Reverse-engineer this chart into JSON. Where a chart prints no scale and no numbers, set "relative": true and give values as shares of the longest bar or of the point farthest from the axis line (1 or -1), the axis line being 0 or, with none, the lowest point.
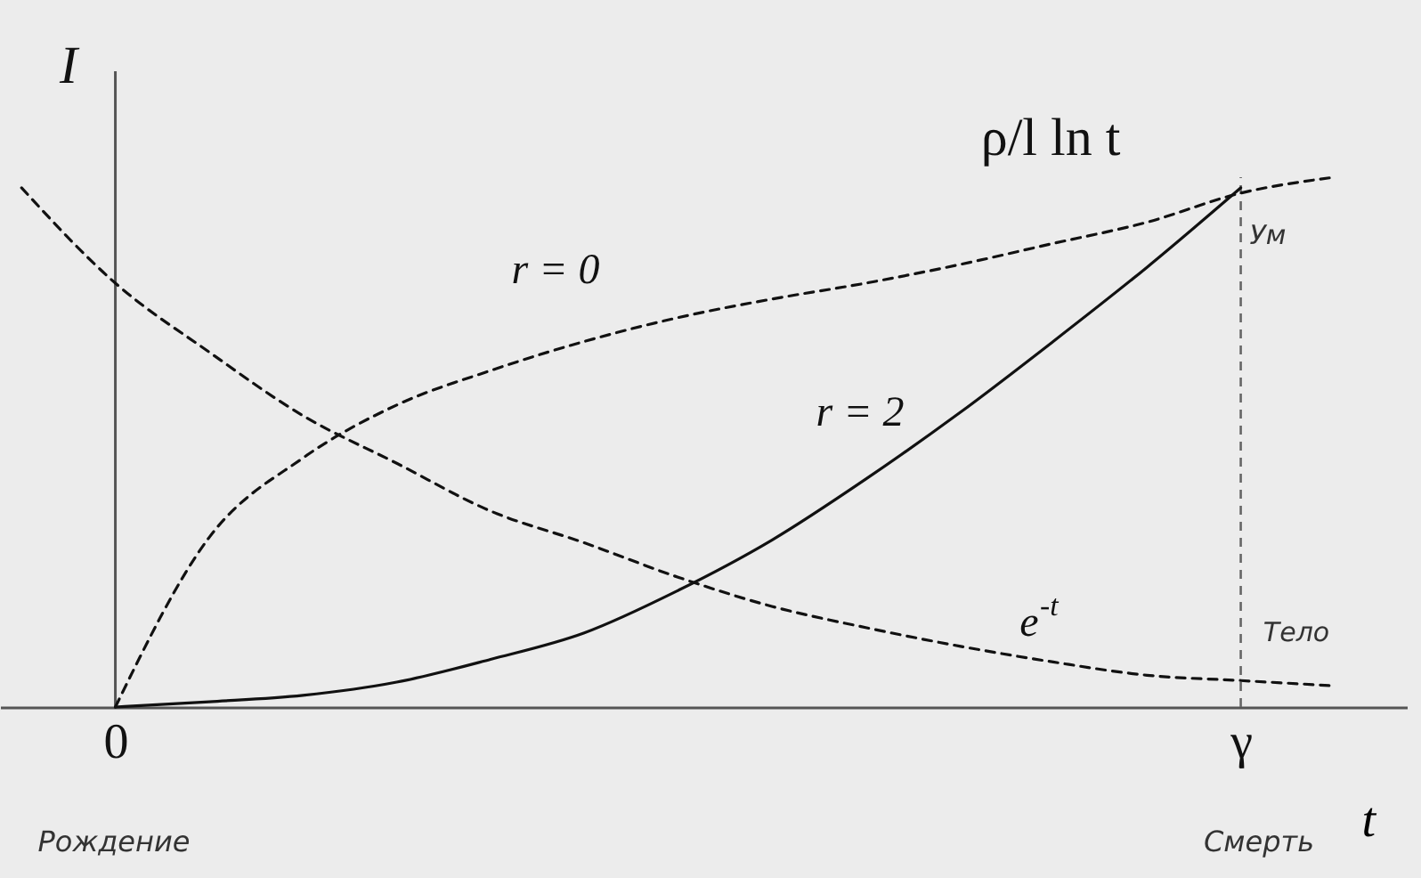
{
  "chart_data": {
    "type": "line",
    "relative": true,
    "xlabel": "t",
    "ylabel": "I",
    "categories": [
      null,
      "0",
      null,
      null,
      null,
      null,
      null,
      null,
      null,
      null,
      null,
      null,
      null,
      "γ",
      null
    ],
    "marker": "none",
    "series": [
      {
        "name": "r = 0",
        "color": "#111111",
        "line_style": "dashed",
        "values": [
          null,
          0,
          0.32,
          0.47,
          0.57,
          0.635,
          0.69,
          0.735,
          0.77,
          0.8,
          0.835,
          0.875,
          0.915,
          0.97,
          1
        ]
      },
      {
        "name": "r = 2",
        "color": "#111111",
        "line_style": "solid",
        "values": [
          null,
          0,
          0.01,
          0.022,
          0.047,
          0.09,
          0.14,
          0.22,
          0.315,
          0.43,
          0.555,
          0.69,
          0.83,
          0.98,
          null
        ]
      },
      {
        "name": "e$^{-t}$",
        "color": "#111111",
        "line_style": "dashed",
        "values": [
          0.98,
          0.8,
          0.67,
          0.55,
          0.46,
          0.37,
          0.31,
          0.245,
          0.19,
          0.15,
          0.115,
          0.085,
          0.06,
          0.05,
          0.04
        ]
      }
    ],
    "ref_lines": [
      {
        "axis": "x",
        "value": "γ",
        "color": "#666666",
        "line_style": "dashed"
      }
    ],
    "annotations": [
      "ρ/l ln t",
      "Ум",
      "Тело",
      "Рождение",
      "Смерть"
    ]
  }
}
